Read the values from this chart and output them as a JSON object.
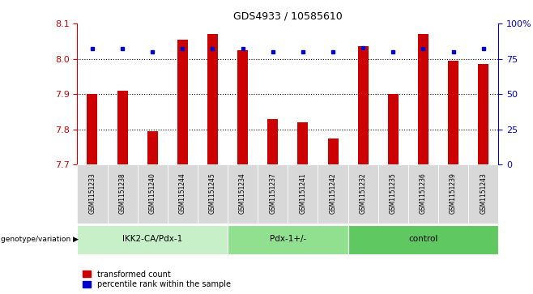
{
  "title": "GDS4933 / 10585610",
  "samples": [
    "GSM1151233",
    "GSM1151238",
    "GSM1151240",
    "GSM1151244",
    "GSM1151245",
    "GSM1151234",
    "GSM1151237",
    "GSM1151241",
    "GSM1151242",
    "GSM1151232",
    "GSM1151235",
    "GSM1151236",
    "GSM1151239",
    "GSM1151243"
  ],
  "red_values": [
    7.9,
    7.91,
    7.795,
    8.055,
    8.07,
    8.025,
    7.83,
    7.82,
    7.775,
    8.035,
    7.9,
    8.07,
    7.995,
    7.985
  ],
  "blue_values": [
    82,
    82,
    80,
    82,
    82,
    82,
    80,
    80,
    80,
    83,
    80,
    82,
    80,
    82
  ],
  "groups": [
    {
      "label": "IKK2-CA/Pdx-1",
      "start": 0,
      "end": 5,
      "color": "#c8f0c8"
    },
    {
      "label": "Pdx-1+/-",
      "start": 5,
      "end": 9,
      "color": "#90e090"
    },
    {
      "label": "control",
      "start": 9,
      "end": 14,
      "color": "#60c860"
    }
  ],
  "ymin": 7.7,
  "ymax": 8.1,
  "y2min": 0,
  "y2max": 100,
  "yticks": [
    7.7,
    7.8,
    7.9,
    8.0,
    8.1
  ],
  "y2ticks": [
    0,
    25,
    50,
    75,
    100
  ],
  "bar_color": "#cc0000",
  "dot_color": "#0000cc",
  "background_color": "#ffffff",
  "sample_box_color": "#d8d8d8",
  "legend_red": "transformed count",
  "legend_blue": "percentile rank within the sample",
  "genotype_label": "genotype/variation"
}
